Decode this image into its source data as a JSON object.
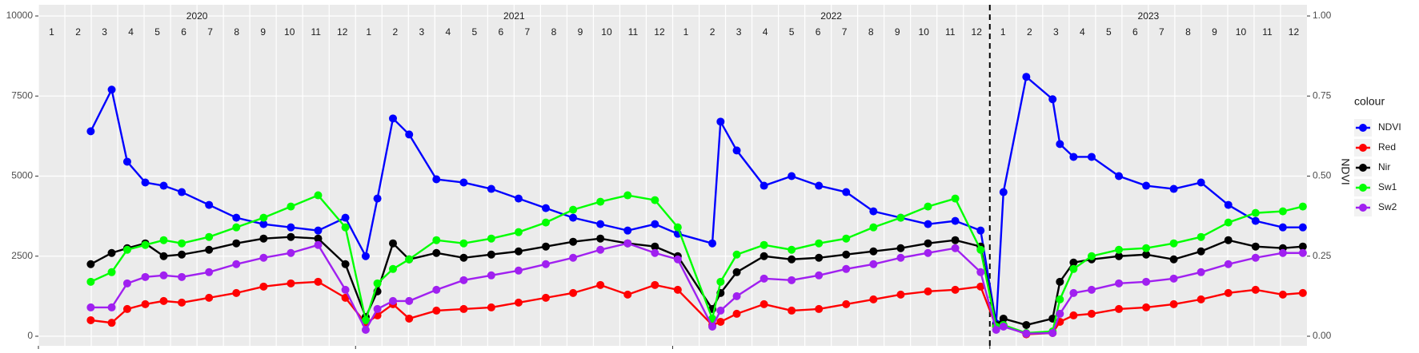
{
  "chart_data": {
    "type": "line",
    "years": [
      2020,
      2021,
      2022,
      2023
    ],
    "months": [
      1,
      2,
      3,
      4,
      5,
      6,
      7,
      8,
      9,
      10,
      11,
      12
    ],
    "x": [
      2020.165,
      2020.231,
      2020.28,
      2020.337,
      2020.395,
      2020.452,
      2020.538,
      2020.624,
      2020.71,
      2020.796,
      2020.882,
      2020.968,
      2021.032,
      2021.069,
      2021.118,
      2021.169,
      2021.255,
      2021.341,
      2021.428,
      2021.514,
      2021.6,
      2021.686,
      2021.772,
      2021.858,
      2021.944,
      2022.016,
      2022.125,
      2022.151,
      2022.202,
      2022.288,
      2022.375,
      2022.461,
      2022.547,
      2022.633,
      2022.719,
      2022.805,
      2022.891,
      2022.971,
      2023.02,
      2023.043,
      2023.115,
      2023.198,
      2023.221,
      2023.264,
      2023.321,
      2023.407,
      2023.493,
      2023.58,
      2023.666,
      2023.752,
      2023.838,
      2023.924,
      2023.987
    ],
    "xlim": [
      2020,
      2024
    ],
    "xticks": [
      2020,
      2021,
      2022,
      2023
    ],
    "vline": 2023,
    "ylim": [
      0,
      10000
    ],
    "yticks": [
      0,
      2500,
      5000,
      7500,
      10000
    ],
    "y2lim": [
      0,
      1
    ],
    "y2ticks": [
      {
        "value": 0,
        "label": "0.00"
      },
      {
        "value": 0.25,
        "label": "0.25"
      },
      {
        "value": 0.5,
        "label": "0.50"
      },
      {
        "value": 0.75,
        "label": "0.75"
      },
      {
        "value": 1,
        "label": "1.00"
      }
    ],
    "y2_label": "NDVI",
    "legend_title": "colour",
    "grid": true,
    "series": [
      {
        "name": "NDVI",
        "color": "#0000ff",
        "axis": "y2",
        "values": [
          0.64,
          0.77,
          0.545,
          0.48,
          0.47,
          0.45,
          0.41,
          0.37,
          0.35,
          0.34,
          0.33,
          0.37,
          0.25,
          0.43,
          0.68,
          0.63,
          0.49,
          0.48,
          0.46,
          0.43,
          0.4,
          0.37,
          0.35,
          0.33,
          0.35,
          0.32,
          0.29,
          0.67,
          0.58,
          0.47,
          0.5,
          0.47,
          0.45,
          0.39,
          0.37,
          0.35,
          0.36,
          0.33,
          0.04,
          0.45,
          0.81,
          0.74,
          0.6,
          0.56,
          0.56,
          0.5,
          0.47,
          0.46,
          0.48,
          0.41,
          0.36,
          0.34,
          0.34
        ]
      },
      {
        "name": "Red",
        "color": "#ff0000",
        "values": [
          500,
          420,
          850,
          1000,
          1100,
          1050,
          1200,
          1350,
          1550,
          1650,
          1700,
          1200,
          400,
          650,
          1000,
          550,
          800,
          850,
          900,
          1050,
          1200,
          1350,
          1600,
          1300,
          1600,
          1450,
          350,
          450,
          700,
          1000,
          800,
          850,
          1000,
          1150,
          1300,
          1400,
          1450,
          1550,
          300,
          350,
          60,
          100,
          450,
          650,
          700,
          850,
          900,
          1000,
          1150,
          1350,
          1450,
          1300,
          1350
        ]
      },
      {
        "name": "Nir",
        "color": "#000000",
        "values": [
          2250,
          2600,
          2750,
          2900,
          2500,
          2550,
          2700,
          2900,
          3050,
          3100,
          3050,
          2250,
          600,
          1400,
          2900,
          2400,
          2600,
          2450,
          2550,
          2650,
          2800,
          2950,
          3050,
          2900,
          2800,
          2500,
          850,
          1350,
          2000,
          2500,
          2400,
          2450,
          2550,
          2650,
          2750,
          2900,
          3000,
          2800,
          350,
          550,
          350,
          550,
          1700,
          2300,
          2400,
          2500,
          2550,
          2400,
          2650,
          3000,
          2800,
          2750,
          2800
        ]
      },
      {
        "name": "Sw1",
        "color": "#00ff00",
        "values": [
          1700,
          2000,
          2700,
          2850,
          3000,
          2900,
          3100,
          3400,
          3700,
          4050,
          4400,
          3400,
          500,
          1650,
          2100,
          2400,
          3000,
          2900,
          3050,
          3250,
          3550,
          3950,
          4200,
          4400,
          4250,
          3400,
          550,
          1700,
          2550,
          2850,
          2700,
          2900,
          3050,
          3400,
          3700,
          4050,
          4300,
          2700,
          300,
          350,
          100,
          150,
          1150,
          2100,
          2500,
          2700,
          2750,
          2900,
          3100,
          3550,
          3850,
          3900,
          4050
        ]
      },
      {
        "name": "Sw2",
        "color": "#a020f0",
        "values": [
          900,
          900,
          1650,
          1850,
          1900,
          1850,
          2000,
          2250,
          2450,
          2600,
          2850,
          1450,
          200,
          850,
          1100,
          1100,
          1450,
          1750,
          1900,
          2050,
          2250,
          2450,
          2700,
          2900,
          2600,
          2400,
          300,
          800,
          1250,
          1800,
          1750,
          1900,
          2100,
          2250,
          2450,
          2600,
          2750,
          2000,
          200,
          300,
          80,
          100,
          700,
          1350,
          1450,
          1650,
          1700,
          1800,
          2000,
          2250,
          2450,
          2600,
          2600
        ]
      }
    ]
  }
}
